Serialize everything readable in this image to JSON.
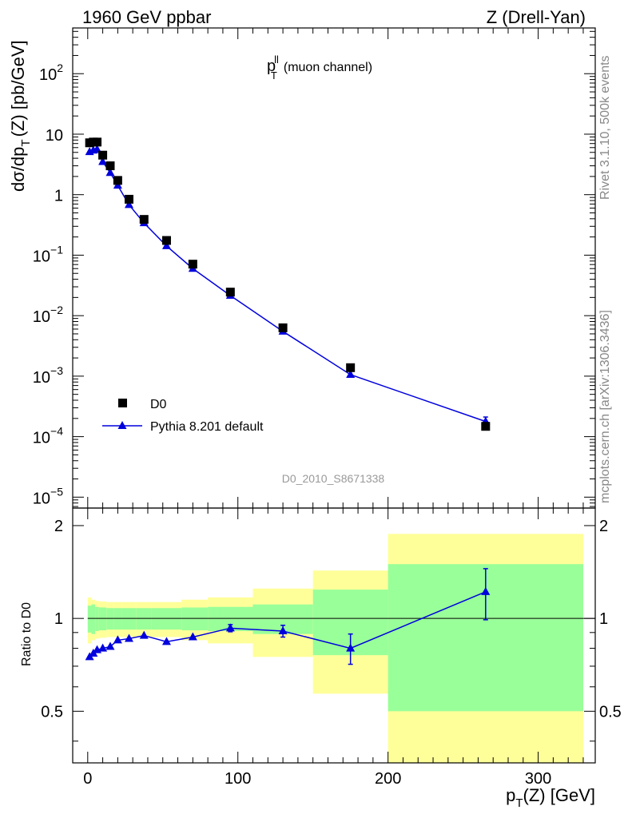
{
  "header": {
    "left": "1960 GeV ppbar",
    "right": "Z (Drell-Yan)"
  },
  "side_text": {
    "rivet": "Rivet 3.1.10,  500k events",
    "mcplots": "mcplots.cern.ch [arXiv:1306.3436]"
  },
  "colors": {
    "mc": "#0000dd",
    "band_green": "#99ff99",
    "band_yellow": "#ffff99",
    "data": "#000000"
  },
  "chart_data": [
    {
      "type": "scatter",
      "title_main": "p",
      "title_sup": "ll",
      "title_sub": "T",
      "title_rest": "(muon channel)",
      "ylabel": {
        "a": "dσ/dp",
        "sub": "T",
        "b": "(Z) [pb/GeV]"
      },
      "yscale": "log",
      "ylim": [
        6.6e-06,
        570
      ],
      "xlim": [
        -10,
        338
      ],
      "ytick_labels": [
        {
          "v": 1e-05,
          "base": "10",
          "exp": "−5"
        },
        {
          "v": 0.0001,
          "base": "10",
          "exp": "−4"
        },
        {
          "v": 0.001,
          "base": "10",
          "exp": "−3"
        },
        {
          "v": 0.01,
          "base": "10",
          "exp": "−2"
        },
        {
          "v": 0.1,
          "base": "10",
          "exp": "−1"
        },
        {
          "v": 1,
          "base": "1",
          "exp": ""
        },
        {
          "v": 10,
          "base": "10",
          "exp": ""
        },
        {
          "v": 100,
          "base": "10",
          "exp": "2"
        }
      ],
      "watermark": "D0_2010_S8671338",
      "legend": {
        "placement": "bottom-left",
        "entries": [
          "D0",
          "Pythia 8.201 default"
        ]
      },
      "series": [
        {
          "name": "D0",
          "x": [
            1.25,
            3.75,
            6.25,
            10,
            15,
            20,
            27.5,
            37.5,
            52.5,
            70,
            95,
            130,
            175,
            265
          ],
          "y": [
            7.2,
            7.4,
            7.4,
            4.5,
            3.0,
            1.72,
            0.84,
            0.39,
            0.175,
            0.071,
            0.0245,
            0.0063,
            0.00138,
            0.000148
          ]
        },
        {
          "name": "Pythia 8.201 default",
          "x": [
            1.25,
            3.75,
            6.25,
            10,
            15,
            20,
            27.5,
            37.5,
            52.5,
            70,
            95,
            130,
            175,
            265
          ],
          "y": [
            5.1,
            5.4,
            5.6,
            3.5,
            2.3,
            1.42,
            0.68,
            0.34,
            0.142,
            0.06,
            0.0215,
            0.0055,
            0.00106,
            0.000178
          ],
          "err_up": [
            0,
            0,
            0,
            0,
            0,
            0,
            0,
            0,
            0,
            0,
            0,
            0,
            0,
            3.3e-05
          ],
          "err_down": [
            0,
            0,
            0,
            0,
            0,
            0,
            0,
            0,
            0,
            0,
            0,
            0,
            0,
            2.5e-05
          ]
        }
      ]
    },
    {
      "type": "scatter",
      "ylabel": "Ratio to D0",
      "xlabel": {
        "a": "p",
        "sub": "T",
        "b": "(Z) [GeV]"
      },
      "xlim": [
        -10,
        338
      ],
      "ylim": [
        0.34,
        2.28
      ],
      "xticks": [
        0,
        100,
        200,
        300
      ],
      "yticks": [
        0.5,
        1,
        2
      ],
      "reference_line": 1,
      "band_bins": {
        "edges": [
          0,
          2.5,
          5,
          7.5,
          12.5,
          17.5,
          22.5,
          32.5,
          42.5,
          62.5,
          80,
          110,
          150,
          200,
          330
        ],
        "inner": [
          0.1,
          0.11,
          0.09,
          0.085,
          0.08,
          0.08,
          0.08,
          0.08,
          0.08,
          0.085,
          0.09,
          0.11,
          0.24,
          0.5
        ],
        "outer": [
          0.17,
          0.15,
          0.14,
          0.135,
          0.13,
          0.13,
          0.13,
          0.13,
          0.13,
          0.15,
          0.17,
          0.25,
          0.43,
          0.88
        ]
      },
      "series": [
        {
          "name": "Pythia 8.201 default",
          "x": [
            1.25,
            3.75,
            6.25,
            10,
            15,
            20,
            27.5,
            37.5,
            52.5,
            70,
            95,
            130,
            175,
            265
          ],
          "y": [
            0.75,
            0.77,
            0.79,
            0.8,
            0.81,
            0.85,
            0.86,
            0.88,
            0.84,
            0.87,
            0.93,
            0.91,
            0.8,
            1.22
          ],
          "err": [
            0.01,
            0.01,
            0.01,
            0.01,
            0.01,
            0.01,
            0.01,
            0.01,
            0.01,
            0.015,
            0.025,
            0.04,
            0.09,
            0.23
          ]
        }
      ]
    }
  ]
}
